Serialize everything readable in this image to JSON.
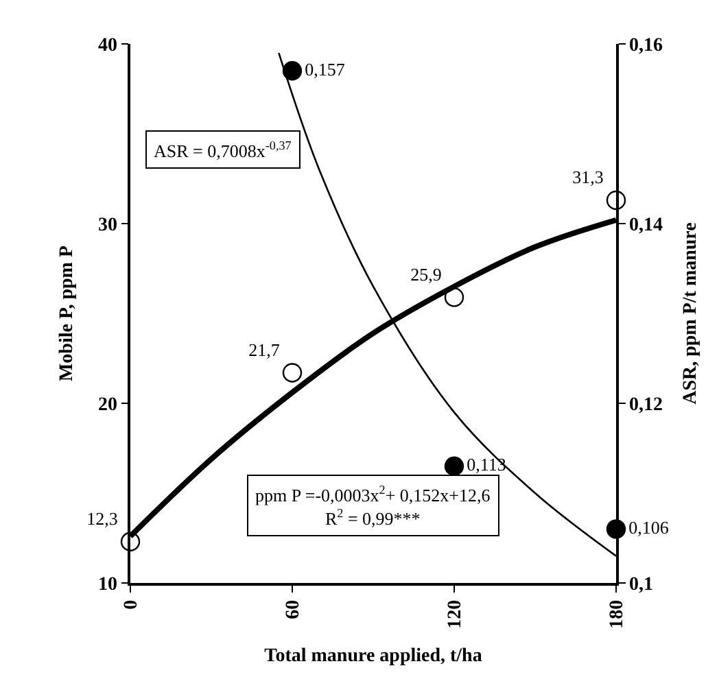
{
  "chart_data": {
    "type": "scatter",
    "xlabel": "Total manure applied, t/ha",
    "ylabel": "Mobile P, ppm P",
    "y2label": "ASR, ppm P/t manure",
    "xlim": [
      0,
      180
    ],
    "xticks": [
      0,
      60,
      120,
      180
    ],
    "ylim": [
      10,
      40
    ],
    "yticks": [
      10,
      20,
      30,
      40
    ],
    "y2lim": [
      0.1,
      0.16
    ],
    "y2ticks": [
      {
        "value": 0.1,
        "label": "0,1"
      },
      {
        "value": 0.12,
        "label": "0,12"
      },
      {
        "value": 0.14,
        "label": "0,14"
      },
      {
        "value": 0.16,
        "label": "0,16"
      }
    ],
    "marker": "circle",
    "series": [
      {
        "color": "#ffffff",
        "x": [
          0,
          60,
          120,
          180
        ],
        "values": [
          12.3,
          21.7,
          25.9,
          31.3
        ],
        "value_labels": [
          "12,3",
          "21,7",
          "25,9",
          "31,3"
        ]
      },
      {
        "type": "line",
        "marker": "none",
        "color": "#000000",
        "x": [
          0,
          30,
          60,
          90,
          120,
          150,
          180
        ],
        "values": [
          12.6,
          16.9,
          20.6,
          23.9,
          26.5,
          28.7,
          30.2
        ]
      },
      {
        "axis": "y2",
        "color": "#000000",
        "x": [
          60,
          120,
          180
        ],
        "values": [
          0.157,
          0.113,
          0.106
        ],
        "value_labels": [
          "0,157",
          "0,113",
          "0,106"
        ]
      },
      {
        "type": "line",
        "marker": "none",
        "axis": "y2",
        "color": "#000000",
        "x": [
          55,
          70,
          90,
          120,
          150,
          180
        ],
        "values": [
          0.159,
          0.146,
          0.133,
          0.119,
          0.11,
          0.103
        ]
      }
    ],
    "annotations": [
      "ASR = 0,7008x$^{-0,37}$",
      "ppm P =-0,0003x$^{2}$+ 0,152x+12,6\nR$^{2}$ = 0,99***"
    ]
  }
}
